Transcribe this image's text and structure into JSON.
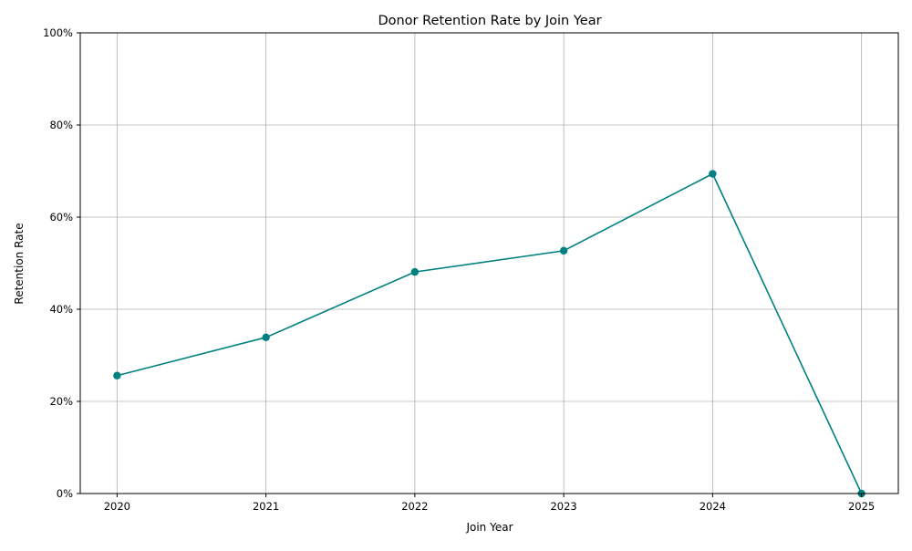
{
  "chart_data": {
    "type": "line",
    "title": "Donor Retention Rate by Join Year",
    "xlabel": "Join Year",
    "ylabel": "Retention Rate",
    "x": [
      "2020",
      "2021",
      "2022",
      "2023",
      "2024",
      "2025"
    ],
    "series": [
      {
        "values": [
          0.256,
          0.339,
          0.481,
          0.527,
          0.694,
          0.0
        ],
        "color": "#008080",
        "marker": "circle"
      }
    ],
    "ylim": [
      0,
      1
    ],
    "yticks": [
      0,
      0.2,
      0.4,
      0.6,
      0.8,
      1.0
    ],
    "ytick_labels": [
      "0%",
      "20%",
      "40%",
      "60%",
      "80%",
      "100%"
    ],
    "grid": true,
    "legend": "none"
  }
}
